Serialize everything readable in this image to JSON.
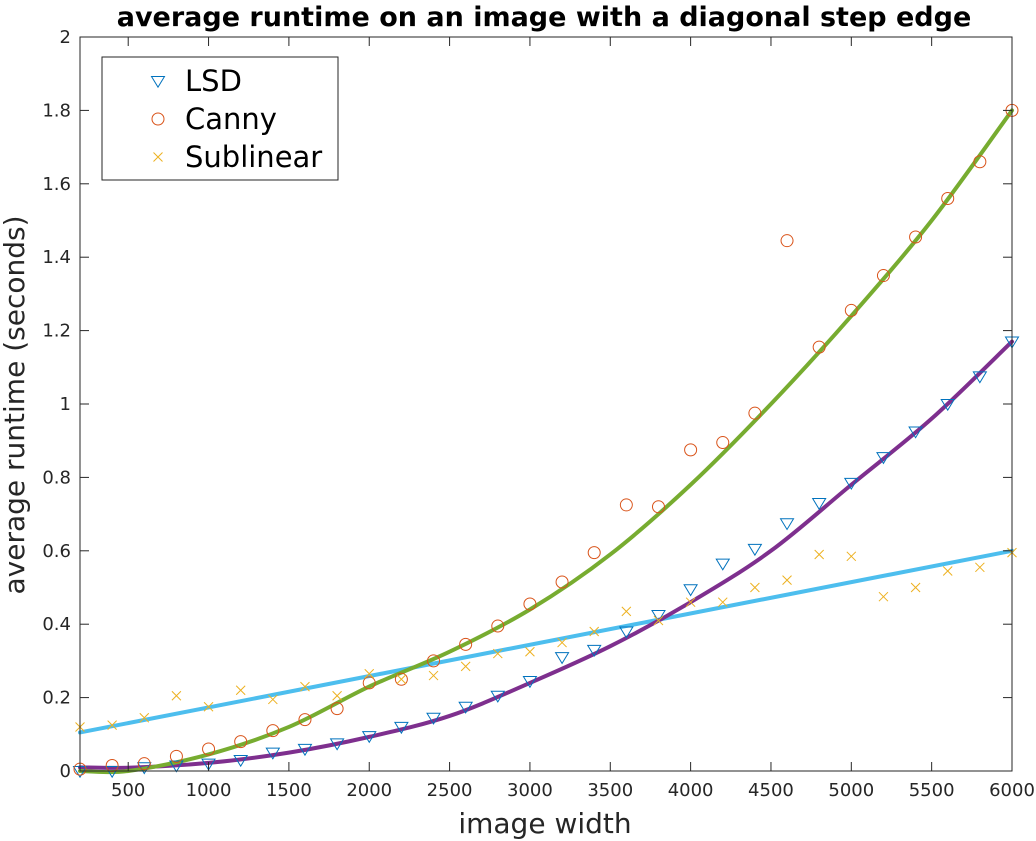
{
  "chart_data": {
    "type": "scatter",
    "title": "average runtime on an image with a diagonal step edge",
    "xlabel": "image width",
    "ylabel": "average runtime (seconds)",
    "xlim": [
      200,
      6000
    ],
    "ylim": [
      0,
      2
    ],
    "xticks": [
      500,
      1000,
      1500,
      2000,
      2500,
      3000,
      3500,
      4000,
      4500,
      5000,
      5500,
      6000
    ],
    "xtick_labels": [
      "500",
      "1000",
      "1500",
      "2000",
      "2500",
      "3000",
      "3500",
      "4000",
      "4500",
      "5000",
      "5500",
      "6000"
    ],
    "yticks": [
      0,
      0.2,
      0.4,
      0.6,
      0.8,
      1,
      1.2,
      1.4,
      1.6,
      1.8,
      2
    ],
    "ytick_labels": [
      "0",
      "0.2",
      "0.4",
      "0.6",
      "0.8",
      "1",
      "1.2",
      "1.4",
      "1.6",
      "1.8",
      "2"
    ],
    "grid": false,
    "legend_position": "top-left",
    "x": [
      200,
      400,
      600,
      800,
      1000,
      1200,
      1400,
      1600,
      1800,
      2000,
      2200,
      2400,
      2600,
      2800,
      3000,
      3200,
      3400,
      3600,
      3800,
      4000,
      4200,
      4400,
      4600,
      4800,
      5000,
      5200,
      5400,
      5600,
      5800,
      6000
    ],
    "series": [
      {
        "name": "LSD",
        "marker": "triangle-down",
        "color": "#0072BD",
        "values": [
          0.0,
          0.0,
          0.01,
          0.015,
          0.02,
          0.03,
          0.05,
          0.06,
          0.075,
          0.095,
          0.12,
          0.145,
          0.175,
          0.205,
          0.245,
          0.31,
          0.33,
          0.38,
          0.425,
          0.495,
          0.565,
          0.605,
          0.675,
          0.73,
          0.785,
          0.855,
          0.925,
          1.0,
          1.075,
          1.17
        ]
      },
      {
        "name": "Canny",
        "marker": "circle",
        "color": "#D95319",
        "values": [
          0.005,
          0.015,
          0.02,
          0.04,
          0.06,
          0.08,
          0.11,
          0.14,
          0.17,
          0.24,
          0.25,
          0.3,
          0.345,
          0.395,
          0.455,
          0.515,
          0.595,
          0.725,
          0.72,
          0.875,
          0.895,
          0.975,
          1.445,
          1.155,
          1.255,
          1.35,
          1.455,
          1.56,
          1.66,
          1.8
        ]
      },
      {
        "name": "Sublinear",
        "marker": "x",
        "color": "#EDB120",
        "values": [
          0.12,
          0.125,
          0.145,
          0.205,
          0.175,
          0.22,
          0.195,
          0.23,
          0.205,
          0.265,
          0.25,
          0.26,
          0.285,
          0.32,
          0.325,
          0.35,
          0.38,
          0.435,
          0.41,
          0.46,
          0.46,
          0.5,
          0.52,
          0.59,
          0.585,
          0.475,
          0.5,
          0.545,
          0.555,
          0.595
        ]
      }
    ],
    "fit_curves": [
      {
        "color": "#4DBEEE",
        "x": [
          200,
          6000
        ],
        "y": [
          0.105,
          0.6
        ]
      },
      {
        "color": "#7E2F8E",
        "x": [
          200,
          500,
          1000,
          1500,
          2000,
          2500,
          3000,
          3500,
          4000,
          4500,
          5000,
          5500,
          6000
        ],
        "y": [
          0.01,
          0.009,
          0.022,
          0.05,
          0.093,
          0.15,
          0.24,
          0.34,
          0.46,
          0.6,
          0.78,
          0.96,
          1.17
        ]
      },
      {
        "color": "#77AC30",
        "x": [
          200,
          500,
          1000,
          1500,
          2000,
          2500,
          3000,
          3500,
          4000,
          4500,
          5000,
          5500,
          6000
        ],
        "y": [
          0.0,
          0.0,
          0.045,
          0.12,
          0.23,
          0.325,
          0.44,
          0.59,
          0.78,
          1.0,
          1.24,
          1.5,
          1.8
        ]
      }
    ]
  }
}
